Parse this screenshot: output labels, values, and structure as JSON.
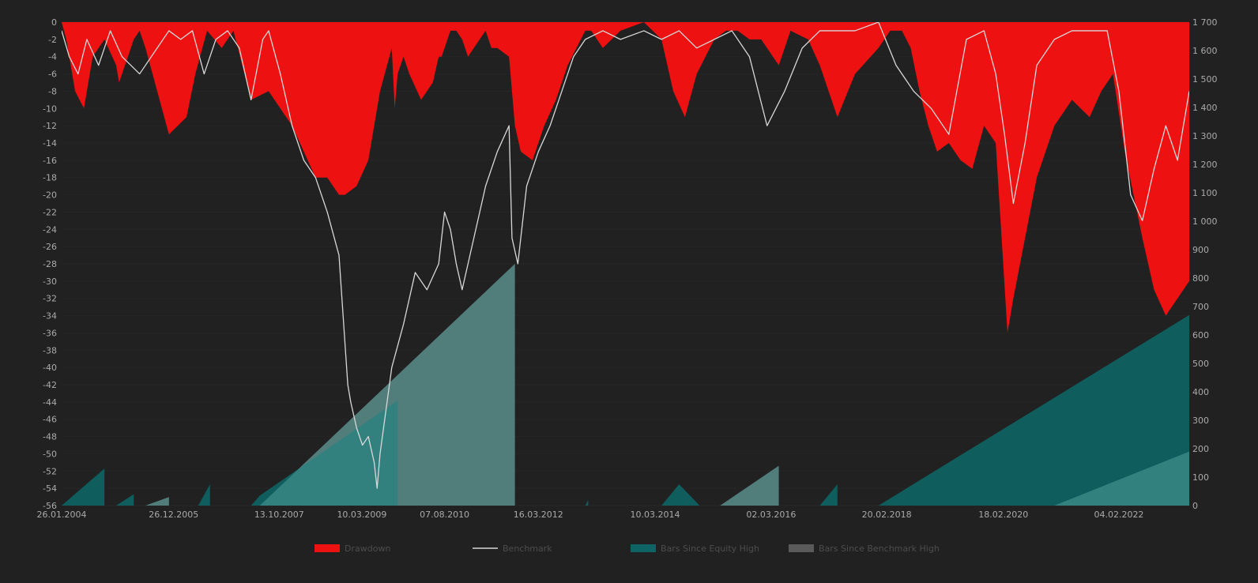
{
  "chart_data": {
    "type": "area",
    "colors": {
      "background": "#212121",
      "drawdown": "#ee1111",
      "benchmark": "#d8d8d8",
      "equity_bars": "#0e6464",
      "benchmark_bars": "#5a5a5a",
      "overlap_bars": "#4a9a97",
      "axis_text": "#aaaaaa",
      "legend_text": "#4d4d4d",
      "grid": "#262626"
    },
    "x_ticks": [
      "26.01.2004",
      "26.12.2005",
      "13.10.2007",
      "10.03.2009",
      "07.08.2010",
      "16.03.2012",
      "10.03.2014",
      "02.03.2016",
      "20.02.2018",
      "18.02.2020",
      "04.02.2022"
    ],
    "x_tick_years": [
      2004.07,
      2005.98,
      2007.78,
      2009.19,
      2010.6,
      2012.2,
      2014.19,
      2016.17,
      2018.14,
      2020.13,
      2022.1
    ],
    "x_range": [
      2004.07,
      2023.3
    ],
    "y_left": {
      "ticks": [
        "0",
        "-2",
        "-4",
        "-6",
        "-8",
        "-10",
        "-12",
        "-14",
        "-16",
        "-18",
        "-20",
        "-22",
        "-24",
        "-26",
        "-28",
        "-30",
        "-32",
        "-34",
        "-36",
        "-38",
        "-40",
        "-42",
        "-44",
        "-46",
        "-48",
        "-50",
        "-52",
        "-54",
        "-56"
      ],
      "range": [
        -56,
        0
      ]
    },
    "y_right": {
      "ticks": [
        "0",
        "100",
        "200",
        "300",
        "400",
        "500",
        "600",
        "700",
        "800",
        "900",
        "1 000",
        "1 100",
        "1 200",
        "1 300",
        "1 400",
        "1 500",
        "1 600",
        "1 700"
      ],
      "range": [
        0,
        1700
      ]
    },
    "legend": [
      "Drawdown",
      "Benchmark",
      "Bars Since Equity High",
      "Bars Since Benchmark High"
    ],
    "legend_position": "bottom",
    "series": [
      {
        "name": "Drawdown",
        "axis": "left",
        "kind": "area",
        "x": [
          2004.07,
          2004.15,
          2004.3,
          2004.45,
          2004.6,
          2004.8,
          2005.0,
          2005.05,
          2005.3,
          2005.4,
          2005.5,
          2005.7,
          2005.9,
          2006.2,
          2006.35,
          2006.55,
          2006.8,
          2007.0,
          2007.3,
          2007.6,
          2007.8,
          2008.0,
          2008.2,
          2008.4,
          2008.6,
          2008.8,
          2008.9,
          2009.1,
          2009.3,
          2009.5,
          2009.7,
          2009.75,
          2009.8,
          2009.9,
          2010.0,
          2010.2,
          2010.4,
          2010.5,
          2010.55,
          2010.7,
          2010.8,
          2010.9,
          2011.0,
          2011.3,
          2011.4,
          2011.5,
          2011.7,
          2011.8,
          2011.9,
          2012.1,
          2012.3,
          2012.5,
          2012.7,
          2013.0,
          2013.1,
          2013.3,
          2013.6,
          2014.0,
          2014.3,
          2014.5,
          2014.7,
          2014.9,
          2015.2,
          2015.4,
          2015.6,
          2015.8,
          2016.0,
          2016.3,
          2016.5,
          2016.8,
          2017.0,
          2017.3,
          2017.6,
          2018.0,
          2018.2,
          2018.4,
          2018.55,
          2018.7,
          2018.85,
          2019.0,
          2019.2,
          2019.4,
          2019.6,
          2019.8,
          2020.0,
          2020.1,
          2020.2,
          2020.3,
          2020.5,
          2020.7,
          2021.0,
          2021.3,
          2021.6,
          2021.8,
          2022.0,
          2022.2,
          2022.5,
          2022.7,
          2022.9,
          2023.1,
          2023.3
        ],
        "y": [
          0,
          -2,
          -8,
          -10,
          -4,
          -2,
          -5,
          -7,
          -2,
          -1,
          -3,
          -8,
          -13,
          -11,
          -6,
          -1,
          -3,
          -1,
          -9,
          -8,
          -10,
          -12,
          -15,
          -18,
          -18,
          -20,
          -20,
          -19,
          -16,
          -8,
          -3,
          -10,
          -6,
          -4,
          -6,
          -9,
          -7,
          -4,
          -4,
          -1,
          -1,
          -2,
          -4,
          -1,
          -3,
          -3,
          -4,
          -12,
          -15,
          -16,
          -12,
          -9,
          -5,
          -1,
          -1,
          -3,
          -1,
          0,
          -2,
          -8,
          -11,
          -6,
          -2,
          -1,
          -1,
          -2,
          -2,
          -5,
          -1,
          -2,
          -5,
          -11,
          -6,
          -3,
          -1,
          -1,
          -3,
          -8,
          -12,
          -15,
          -14,
          -16,
          -17,
          -12,
          -14,
          -25,
          -36,
          -32,
          -25,
          -18,
          -12,
          -9,
          -11,
          -8,
          -6,
          -15,
          -25,
          -31,
          -34,
          -32,
          -30
        ]
      },
      {
        "name": "Benchmark",
        "axis": "left",
        "kind": "line",
        "x": [
          2004.07,
          2004.2,
          2004.35,
          2004.5,
          2004.7,
          2004.9,
          2005.1,
          2005.4,
          2005.7,
          2005.9,
          2006.1,
          2006.3,
          2006.5,
          2006.7,
          2006.9,
          2007.1,
          2007.3,
          2007.5,
          2007.6,
          2007.8,
          2008.0,
          2008.2,
          2008.4,
          2008.6,
          2008.8,
          2008.95,
          2009.0,
          2009.1,
          2009.2,
          2009.3,
          2009.4,
          2009.45,
          2009.5,
          2009.7,
          2009.9,
          2010.1,
          2010.3,
          2010.5,
          2010.6,
          2010.7,
          2010.8,
          2010.9,
          2011.1,
          2011.3,
          2011.5,
          2011.7,
          2011.75,
          2011.85,
          2012.0,
          2012.2,
          2012.4,
          2012.6,
          2012.8,
          2013.0,
          2013.3,
          2013.6,
          2014.0,
          2014.3,
          2014.6,
          2014.9,
          2015.2,
          2015.5,
          2015.8,
          2016.1,
          2016.4,
          2016.7,
          2017.0,
          2017.3,
          2017.6,
          2018.0,
          2018.3,
          2018.6,
          2018.9,
          2019.2,
          2019.5,
          2019.8,
          2020.0,
          2020.15,
          2020.3,
          2020.5,
          2020.7,
          2021.0,
          2021.3,
          2021.6,
          2021.9,
          2022.1,
          2022.3,
          2022.5,
          2022.7,
          2022.9,
          2023.1,
          2023.3
        ],
        "y": [
          -1,
          -4,
          -6,
          -2,
          -5,
          -1,
          -4,
          -6,
          -3,
          -1,
          -2,
          -1,
          -6,
          -2,
          -1,
          -3,
          -9,
          -2,
          -1,
          -6,
          -12,
          -16,
          -18,
          -22,
          -27,
          -42,
          -44,
          -47,
          -49,
          -48,
          -51,
          -54,
          -50,
          -40,
          -35,
          -29,
          -31,
          -28,
          -22,
          -24,
          -28,
          -31,
          -25,
          -19,
          -15,
          -12,
          -25,
          -28,
          -19,
          -15,
          -12,
          -8,
          -4,
          -2,
          -1,
          -2,
          -1,
          -2,
          -1,
          -3,
          -2,
          -1,
          -4,
          -12,
          -8,
          -3,
          -1,
          -1,
          -1,
          0,
          -5,
          -8,
          -10,
          -13,
          -2,
          -1,
          -6,
          -13,
          -21,
          -14,
          -5,
          -2,
          -1,
          -1,
          -1,
          -8,
          -20,
          -23,
          -17,
          -12,
          -16,
          -8
        ]
      },
      {
        "name": "Bars Since Equity High",
        "axis": "right",
        "kind": "area",
        "x": [
          2004.07,
          2004.8,
          2004.8,
          2005.0,
          2005.3,
          2005.3,
          2005.65,
          2005.9,
          2005.9,
          2006.4,
          2006.6,
          2006.6,
          2007.0,
          2007.3,
          2007.3,
          2007.45,
          2009.8,
          2009.8,
          2010.0,
          2010.8,
          2010.8,
          2012.4,
          2012.4,
          2013.0,
          2013.05,
          2013.05,
          2014.3,
          2014.3,
          2014.6,
          2014.95,
          2014.95,
          2015.3,
          2015.8,
          2015.8,
          2016.0,
          2016.8,
          2016.8,
          2017.0,
          2017.3,
          2017.3,
          2018.0,
          2023.3
        ],
        "y": [
          0,
          130,
          0,
          0,
          40,
          0,
          0,
          0,
          0,
          0,
          75,
          0,
          0,
          0,
          0,
          35,
          370,
          0,
          0,
          0,
          0,
          0,
          0,
          0,
          20,
          0,
          0,
          0,
          75,
          0,
          0,
          0,
          0,
          0,
          0,
          0,
          0,
          0,
          75,
          0,
          0,
          670
        ]
      },
      {
        "name": "Bars Since Benchmark High",
        "axis": "right",
        "kind": "area",
        "x": [
          2004.07,
          2004.7,
          2004.7,
          2005.5,
          2005.9,
          2005.9,
          2007.45,
          2011.8,
          2011.8,
          2012.5,
          2012.6,
          2012.6,
          2015.3,
          2016.3,
          2016.3,
          2017.9,
          2020.0,
          2020.0,
          2021.0,
          2021.0,
          2023.3
        ],
        "y": [
          0,
          0,
          0,
          0,
          30,
          0,
          0,
          850,
          0,
          0,
          0,
          0,
          0,
          140,
          0,
          0,
          0,
          0,
          0,
          0,
          190
        ]
      }
    ]
  }
}
